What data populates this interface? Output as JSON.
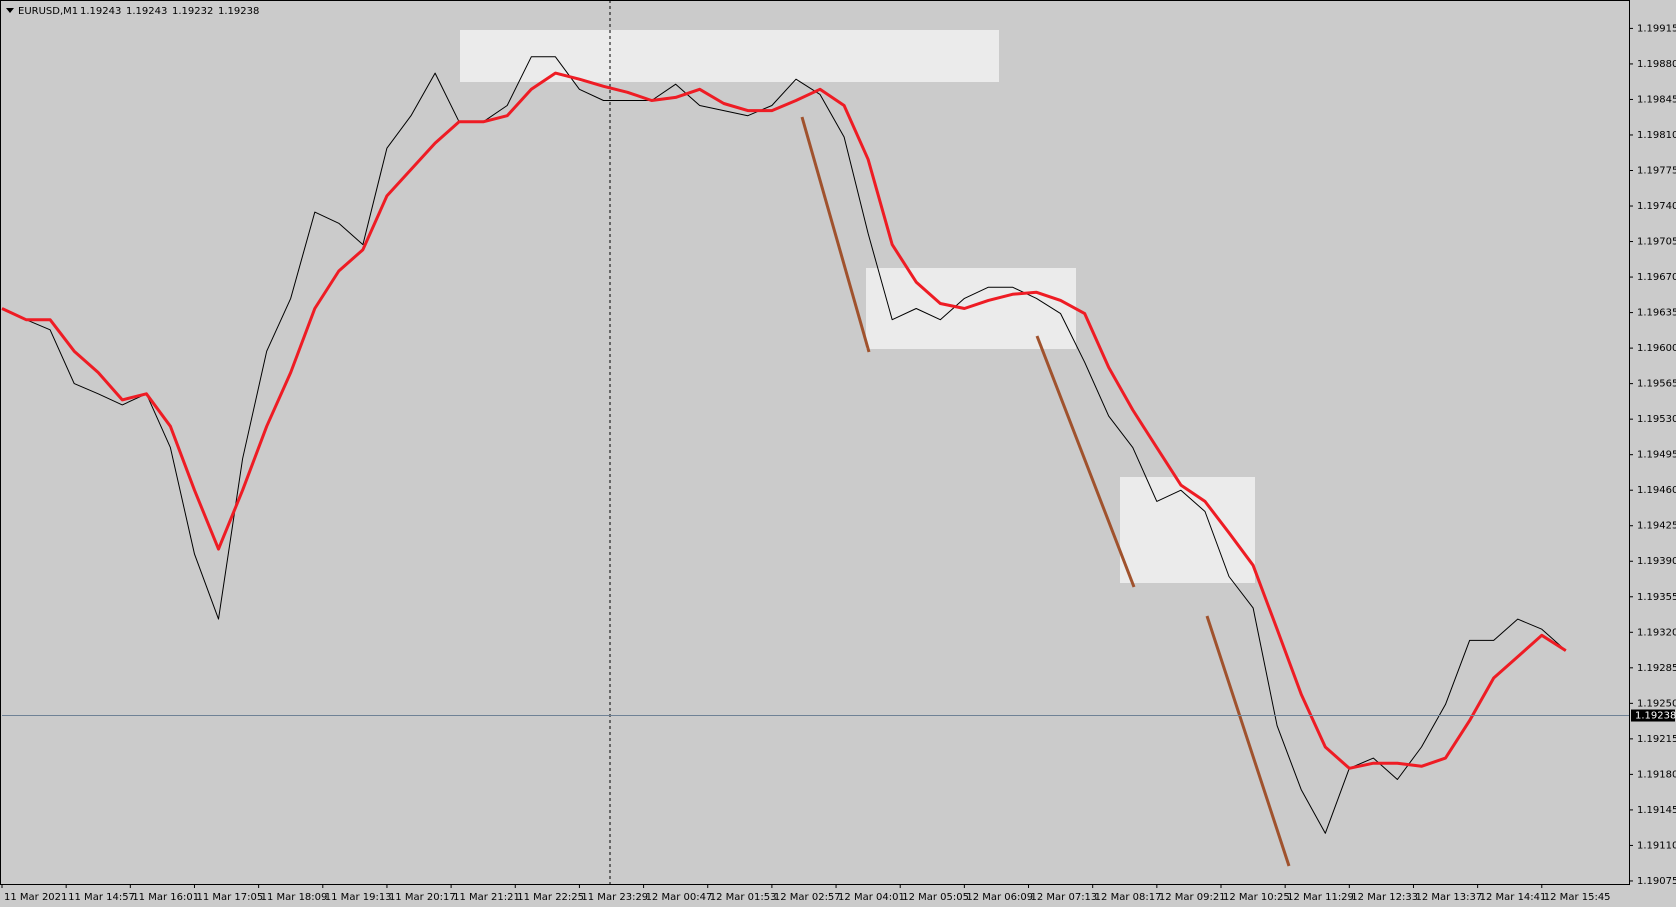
{
  "header": {
    "symbol": "EURUSD,M1",
    "ohlc": [
      1.19243,
      1.19243,
      1.19232,
      1.19238
    ]
  },
  "chart_data": {
    "type": "line",
    "current_price": 1.19238,
    "xlim": [
      0,
      1623
    ],
    "ylim": [
      1.19072,
      1.19942
    ],
    "xticks": [
      {
        "value": 0,
        "label": "11 Mar 2021"
      },
      {
        "value": 64,
        "label": "11 Mar 14:57"
      },
      {
        "value": 128,
        "label": "11 Mar 16:01"
      },
      {
        "value": 192,
        "label": "11 Mar 17:05"
      },
      {
        "value": 256,
        "label": "11 Mar 18:09"
      },
      {
        "value": 320,
        "label": "11 Mar 19:13"
      },
      {
        "value": 384,
        "label": "11 Mar 20:17"
      },
      {
        "value": 448,
        "label": "11 Mar 21:21"
      },
      {
        "value": 512,
        "label": "11 Mar 22:25"
      },
      {
        "value": 576,
        "label": "11 Mar 23:29"
      },
      {
        "value": 640,
        "label": "12 Mar 00:47"
      },
      {
        "value": 704,
        "label": "12 Mar 01:53"
      },
      {
        "value": 768,
        "label": "12 Mar 02:57"
      },
      {
        "value": 832,
        "label": "12 Mar 04:01"
      },
      {
        "value": 896,
        "label": "12 Mar 05:05"
      },
      {
        "value": 960,
        "label": "12 Mar 06:09"
      },
      {
        "value": 1024,
        "label": "12 Mar 07:13"
      },
      {
        "value": 1088,
        "label": "12 Mar 08:17"
      },
      {
        "value": 1152,
        "label": "12 Mar 09:21"
      },
      {
        "value": 1216,
        "label": "12 Mar 10:25"
      },
      {
        "value": 1280,
        "label": "12 Mar 11:29"
      },
      {
        "value": 1344,
        "label": "12 Mar 12:33"
      },
      {
        "value": 1408,
        "label": "12 Mar 13:37"
      },
      {
        "value": 1472,
        "label": "12 Mar 14:41"
      },
      {
        "value": 1536,
        "label": "12 Mar 15:45"
      }
    ],
    "yticks": [
      1.19915,
      {
        "value": 1.1988,
        "label": "1.19880"
      },
      1.19845,
      {
        "value": 1.1981,
        "label": "1.19810"
      },
      1.19775,
      {
        "value": 1.1974,
        "label": "1.19740"
      },
      1.19705,
      {
        "value": 1.1967,
        "label": "1.19670"
      },
      1.19635,
      {
        "value": 1.196,
        "label": "1.19600"
      },
      1.19565,
      {
        "value": 1.1953,
        "label": "1.19530"
      },
      1.19495,
      {
        "value": 1.1946,
        "label": "1.19460"
      },
      1.19425,
      {
        "value": 1.1939,
        "label": "1.19390"
      },
      1.19355,
      {
        "value": 1.1932,
        "label": "1.19320"
      },
      1.19285,
      {
        "value": 1.1925,
        "label": "1.19250"
      },
      1.19215,
      {
        "value": 1.1918,
        "label": "1.19180"
      },
      1.19145,
      {
        "value": 1.1911,
        "label": "1.19110"
      },
      1.19075
    ],
    "x": [
      0,
      24,
      48,
      72,
      96,
      120,
      144,
      168,
      192,
      216,
      240,
      264,
      288,
      312,
      336,
      360,
      384,
      408,
      432,
      456,
      480,
      504,
      528,
      552,
      576,
      600,
      624,
      648,
      672,
      696,
      720,
      744,
      768,
      792,
      816,
      840,
      864,
      888,
      912,
      936,
      960,
      984,
      1008,
      1032,
      1056,
      1080,
      1104,
      1128,
      1152,
      1176,
      1200,
      1224,
      1248,
      1272,
      1296,
      1320,
      1344,
      1368,
      1392,
      1416,
      1440,
      1464,
      1488,
      1512,
      1536,
      1560
    ],
    "series": [
      {
        "color": "#000000",
        "width": 1,
        "values": [
          1.19639,
          1.19628,
          1.19618,
          1.19565,
          1.19555,
          1.19544,
          1.19555,
          1.19502,
          1.19397,
          1.19333,
          1.19491,
          1.19597,
          1.19649,
          1.19734,
          1.19723,
          1.19702,
          1.19797,
          1.19829,
          1.19871,
          1.19823,
          1.19823,
          1.19839,
          1.19887,
          1.19887,
          1.19855,
          1.19844,
          1.19844,
          1.19844,
          1.1986,
          1.19839,
          1.19834,
          1.19829,
          1.19839,
          1.19865,
          1.1985,
          1.19808,
          1.19713,
          1.19628,
          1.19639,
          1.19628,
          1.19649,
          1.1966,
          1.1966,
          1.19649,
          1.19634,
          1.19586,
          1.19533,
          1.19502,
          1.19449,
          1.1946,
          1.19439,
          1.19375,
          1.19344,
          1.19228,
          1.19165,
          1.19122,
          1.19186,
          1.19196,
          1.19175,
          1.19207,
          1.19249,
          1.19312,
          1.19312,
          1.19333,
          1.19323,
          1.19302
        ]
      },
      {
        "color": "#ee1c24",
        "width": 3,
        "values": [
          1.19639,
          1.19628,
          1.19628,
          1.19597,
          1.19576,
          1.19549,
          1.19555,
          1.19523,
          1.1946,
          1.19402,
          1.1946,
          1.19523,
          1.19576,
          1.19639,
          1.19676,
          1.19697,
          1.1975,
          1.19776,
          1.19802,
          1.19823,
          1.19823,
          1.19829,
          1.19855,
          1.19871,
          1.19865,
          1.19858,
          1.19852,
          1.19844,
          1.19847,
          1.19855,
          1.19841,
          1.19834,
          1.19834,
          1.19844,
          1.19855,
          1.19839,
          1.19786,
          1.19702,
          1.19665,
          1.19644,
          1.19639,
          1.19647,
          1.19653,
          1.19655,
          1.19647,
          1.19634,
          1.19581,
          1.19539,
          1.19502,
          1.19465,
          1.19449,
          1.19418,
          1.19386,
          1.19323,
          1.19259,
          1.19207,
          1.19186,
          1.19191,
          1.19191,
          1.19188,
          1.19196,
          1.19233,
          1.19275,
          1.19296,
          1.19317,
          1.19302
        ]
      }
    ]
  }
}
